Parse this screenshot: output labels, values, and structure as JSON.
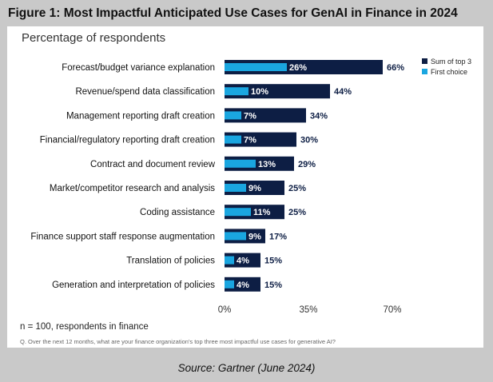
{
  "figure_title": "Figure 1: Most Impactful Anticipated Use Cases for GenAI in Finance in 2024",
  "source": "Source: Gartner (June 2024)",
  "colors": {
    "sum_of_top_3": "#0d1e44",
    "first_choice": "#1aa6e0"
  },
  "chart_data": {
    "type": "bar",
    "orientation": "horizontal",
    "title": "Percentage of respondents",
    "categories": [
      "Forecast/budget variance explanation",
      "Revenue/spend data classification",
      "Management reporting draft creation",
      "Financial/regulatory reporting draft creation",
      "Contract and document review",
      "Market/competitor research and analysis",
      "Coding assistance",
      "Finance support staff response augmentation",
      "Translation of policies",
      "Generation and interpretation of policies"
    ],
    "series": [
      {
        "name": "Sum of top 3",
        "values": [
          66,
          44,
          34,
          30,
          29,
          25,
          25,
          17,
          15,
          15
        ],
        "labels": [
          "66%",
          "44%",
          "34%",
          "30%",
          "29%",
          "25%",
          "25%",
          "17%",
          "15%",
          "15%"
        ]
      },
      {
        "name": "First choice",
        "values": [
          26,
          10,
          7,
          7,
          13,
          9,
          11,
          9,
          4,
          4
        ],
        "labels": [
          "26%",
          "10%",
          "7%",
          "7%",
          "13%",
          "9%",
          "11%",
          "9%",
          "4%",
          "4%"
        ]
      }
    ],
    "xlim": [
      0,
      70
    ],
    "xticks": [
      "0%",
      "35%",
      "70%"
    ],
    "legend_position": "top-right",
    "grid": false
  },
  "footnote": "n = 100, respondents in finance",
  "question": "Q. Over the next 12 months, what are your finance organization's top three most impactful use cases for generative AI?"
}
